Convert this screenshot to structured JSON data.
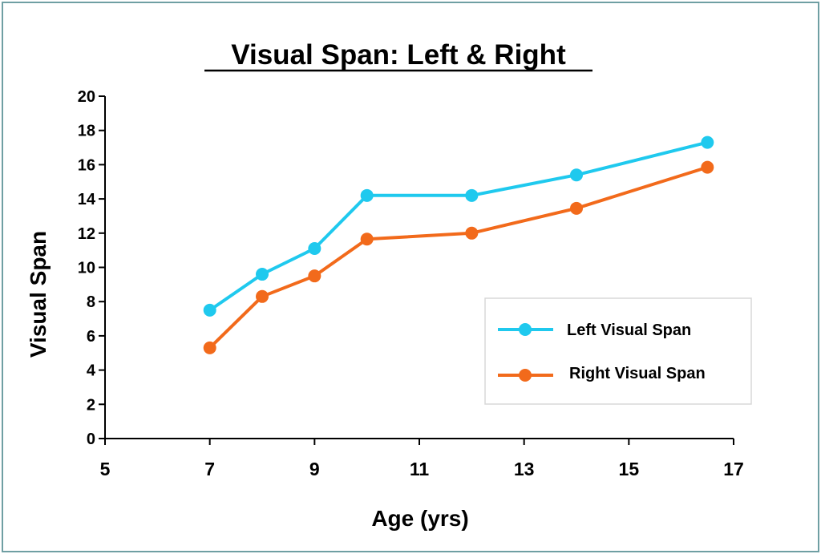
{
  "chart_data": {
    "type": "line",
    "title": "Visual Span: Left & Right",
    "xlabel": "Age (yrs)",
    "ylabel": "Visual Span",
    "xlim": [
      5,
      17
    ],
    "ylim": [
      0,
      20
    ],
    "xticks": [
      "5",
      "7",
      "9",
      "11",
      "13",
      "15",
      "17"
    ],
    "yticks": [
      "0",
      "2",
      "4",
      "6",
      "8",
      "10",
      "12",
      "14",
      "16",
      "18",
      "20"
    ],
    "grid": false,
    "legend_position": "right",
    "series": [
      {
        "name": "Left Visual Span",
        "color": "#1fc9ee",
        "x": [
          7,
          8,
          9,
          10,
          12,
          14,
          16.5
        ],
        "y": [
          7.5,
          9.6,
          11.1,
          14.2,
          14.2,
          15.4,
          17.3
        ]
      },
      {
        "name": "Right Visual Span",
        "color": "#f26a1b",
        "x": [
          7,
          8,
          9,
          10,
          12,
          14,
          16.5
        ],
        "y": [
          5.3,
          8.3,
          9.5,
          11.65,
          12.0,
          13.45,
          15.85
        ]
      }
    ]
  }
}
